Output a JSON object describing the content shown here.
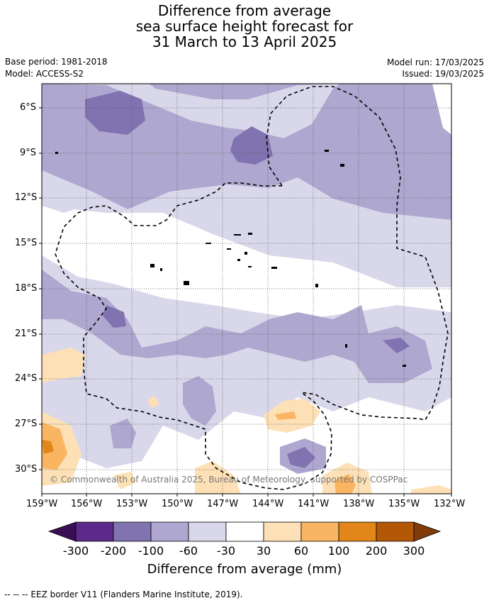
{
  "title": {
    "line1": "Difference from average",
    "line2": "sea surface height forecast for",
    "line3": "31 March to 13 April 2025"
  },
  "meta": {
    "base_period": "Base period: 1981-2018",
    "model": "Model: ACCESS-S2",
    "model_run": "Model run: 17/03/2025",
    "issued": "Issued: 19/03/2025"
  },
  "credit": "© Commonwealth of Australia 2025, Bureau of Meteorology, supported by COSPPac",
  "lat_ticks": [
    "6°S",
    "9°S",
    "12°S",
    "15°S",
    "18°S",
    "21°S",
    "24°S",
    "27°S",
    "30°S"
  ],
  "lon_ticks": [
    "159°W",
    "156°W",
    "153°W",
    "150°W",
    "147°W",
    "144°W",
    "141°W",
    "138°W",
    "135°W",
    "132°W"
  ],
  "colorbar": {
    "title": "Difference from average (mm)",
    "labels": [
      "-300",
      "-200",
      "-100",
      "-60",
      "-30",
      "30",
      "60",
      "100",
      "200",
      "300"
    ],
    "colors": [
      "#3b0f57",
      "#5c2a8a",
      "#8172b0",
      "#aea7cf",
      "#d9d8ea",
      "#ffffff",
      "#fde0b6",
      "#f9b562",
      "#e3861a",
      "#b35806",
      "#7f3b08"
    ]
  },
  "eez_note": "-- -- -- EEZ border V11 (Flanders Marine Institute, 2019)."
}
